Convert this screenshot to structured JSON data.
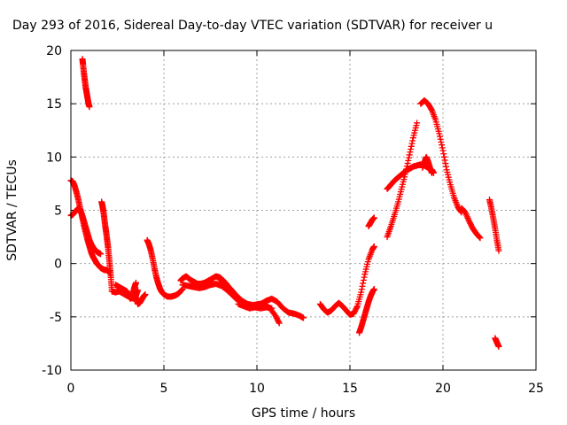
{
  "chart_data": {
    "type": "scatter",
    "title": "Day 293 of 2016, Sidereal Day-to-day VTEC variation (SDTVAR) for receiver u",
    "xlabel": "GPS time / hours",
    "ylabel": "SDTVAR / TECUs",
    "xlim": [
      0,
      25
    ],
    "ylim": [
      -10,
      20
    ],
    "xticks": [
      0,
      5,
      10,
      15,
      20,
      25
    ],
    "yticks": [
      -10,
      -5,
      0,
      5,
      10,
      15,
      20
    ],
    "grid": true,
    "marker": "+",
    "color": "#ff0000",
    "series": [
      {
        "x": [
          0.62,
          0.65,
          0.7,
          0.75,
          0.8,
          0.85,
          0.9,
          0.95,
          1.0
        ],
        "y": [
          19.2,
          18.7,
          17.9,
          17.2,
          16.5,
          16.0,
          15.5,
          15.0,
          14.7
        ]
      },
      {
        "x": [
          0.0,
          0.1,
          0.2,
          0.3,
          0.4,
          0.5,
          0.6,
          0.7,
          0.8,
          0.9,
          1.0,
          1.1,
          1.2,
          1.3,
          1.4,
          1.5,
          1.6,
          1.7,
          1.8,
          1.9,
          2.0,
          2.1
        ],
        "y": [
          7.8,
          7.7,
          7.3,
          6.7,
          6.0,
          5.2,
          4.4,
          3.6,
          2.9,
          2.2,
          1.6,
          1.0,
          0.6,
          0.3,
          0.0,
          -0.2,
          -0.4,
          -0.5,
          -0.6,
          -0.6,
          -0.7,
          -0.8
        ]
      },
      {
        "x": [
          0.0,
          0.1,
          0.2,
          0.3,
          0.4,
          0.5,
          0.6,
          0.7,
          0.8,
          0.9,
          1.0,
          1.1,
          1.2,
          1.3,
          1.4,
          1.5,
          1.6
        ],
        "y": [
          4.5,
          4.6,
          4.8,
          5.0,
          5.2,
          5.0,
          4.6,
          4.0,
          3.4,
          2.8,
          2.2,
          1.8,
          1.5,
          1.3,
          1.1,
          1.0,
          0.9
        ]
      },
      {
        "x": [
          1.65,
          1.7,
          1.75,
          1.8,
          1.85,
          1.9,
          1.95,
          2.0,
          2.05,
          2.1,
          2.15,
          2.2
        ],
        "y": [
          5.8,
          5.4,
          4.9,
          4.2,
          3.5,
          2.9,
          2.2,
          1.5,
          0.6,
          -0.3,
          -1.3,
          -2.4
        ]
      },
      {
        "x": [
          2.2,
          2.4,
          2.6,
          2.8,
          3.0,
          3.2,
          3.4,
          3.5,
          3.6
        ],
        "y": [
          -2.6,
          -2.7,
          -2.6,
          -2.8,
          -3.0,
          -3.2,
          -3.3,
          -3.0,
          -2.5
        ]
      },
      {
        "x": [
          2.4,
          2.6,
          2.8,
          3.0,
          3.1,
          3.2,
          3.3,
          3.4,
          3.5
        ],
        "y": [
          -2.0,
          -2.2,
          -2.4,
          -2.6,
          -2.9,
          -3.3,
          -3.0,
          -2.3,
          -1.8
        ]
      },
      {
        "x": [
          3.4,
          3.5,
          3.6,
          3.7,
          3.8,
          3.9,
          4.0
        ],
        "y": [
          -2.5,
          -3.2,
          -3.8,
          -3.7,
          -3.4,
          -3.1,
          -2.9
        ]
      },
      {
        "x": [
          4.1,
          4.2,
          4.3,
          4.4,
          4.5,
          4.6,
          4.7,
          4.8,
          4.9,
          5.0,
          5.2,
          5.4,
          5.6,
          5.8,
          6.0
        ],
        "y": [
          2.2,
          1.8,
          1.2,
          0.4,
          -0.5,
          -1.3,
          -1.9,
          -2.4,
          -2.7,
          -2.9,
          -3.1,
          -3.1,
          -3.0,
          -2.8,
          -2.4
        ]
      },
      {
        "x": [
          5.9,
          6.0,
          6.2,
          6.4,
          6.6,
          6.8,
          7.0,
          7.2,
          7.4,
          7.6,
          7.8,
          8.0,
          8.2,
          8.4,
          8.6,
          8.8
        ],
        "y": [
          -1.6,
          -1.4,
          -1.2,
          -1.5,
          -1.7,
          -1.9,
          -1.9,
          -1.8,
          -1.6,
          -1.4,
          -1.2,
          -1.3,
          -1.6,
          -2.0,
          -2.5,
          -3.0
        ]
      },
      {
        "x": [
          6.0,
          6.3,
          6.6,
          6.9,
          7.2,
          7.5,
          7.8,
          8.1,
          8.4,
          8.7,
          9.0,
          9.3,
          9.6,
          9.9,
          10.2,
          10.5,
          10.8
        ],
        "y": [
          -2.0,
          -2.1,
          -2.2,
          -2.3,
          -2.2,
          -2.0,
          -1.9,
          -2.1,
          -2.5,
          -3.0,
          -3.5,
          -3.8,
          -4.0,
          -4.1,
          -4.2,
          -4.1,
          -4.2
        ]
      },
      {
        "x": [
          8.0,
          8.3,
          8.6,
          8.9,
          9.2,
          9.5,
          9.8,
          10.1,
          10.4,
          10.7,
          11.0,
          11.2
        ],
        "y": [
          -1.5,
          -1.9,
          -2.4,
          -3.0,
          -3.5,
          -3.8,
          -3.9,
          -3.8,
          -3.8,
          -4.2,
          -4.9,
          -5.6
        ]
      },
      {
        "x": [
          9.0,
          9.3,
          9.6,
          9.9,
          10.2,
          10.5,
          10.8,
          11.1,
          11.4,
          11.7,
          12.0,
          12.3,
          12.5
        ],
        "y": [
          -3.8,
          -4.0,
          -4.2,
          -4.1,
          -3.8,
          -3.5,
          -3.3,
          -3.6,
          -4.2,
          -4.6,
          -4.7,
          -4.9,
          -5.1
        ]
      },
      {
        "x": [
          13.4,
          13.6,
          13.8,
          14.0,
          14.2,
          14.4,
          14.6,
          14.8,
          15.0,
          15.2,
          15.4,
          15.6,
          15.8,
          16.0,
          16.2,
          16.3
        ],
        "y": [
          -3.8,
          -4.3,
          -4.6,
          -4.4,
          -4.0,
          -3.7,
          -4.0,
          -4.4,
          -4.8,
          -4.7,
          -4.0,
          -2.7,
          -1.0,
          0.4,
          1.3,
          1.6
        ]
      },
      {
        "x": [
          15.5,
          15.6,
          15.7,
          15.8,
          15.9,
          16.0,
          16.1,
          16.2,
          16.3
        ],
        "y": [
          -6.5,
          -6.0,
          -5.4,
          -4.8,
          -4.2,
          -3.6,
          -3.1,
          -2.7,
          -2.4
        ]
      },
      {
        "x": [
          16.0,
          16.1,
          16.2,
          16.3
        ],
        "y": [
          3.5,
          3.8,
          4.1,
          4.3
        ]
      },
      {
        "x": [
          17.0,
          17.2,
          17.4,
          17.6,
          17.8,
          18.0,
          18.2,
          18.4,
          18.6,
          18.8,
          19.0,
          19.2,
          19.4,
          19.5
        ],
        "y": [
          7.0,
          7.4,
          7.8,
          8.1,
          8.4,
          8.7,
          8.9,
          9.1,
          9.2,
          9.3,
          9.2,
          9.0,
          8.8,
          8.5
        ]
      },
      {
        "x": [
          17.0,
          17.2,
          17.4,
          17.6,
          17.8,
          18.0,
          18.2,
          18.4,
          18.6
        ],
        "y": [
          2.5,
          3.5,
          4.6,
          5.8,
          7.2,
          8.6,
          10.2,
          11.8,
          13.2
        ]
      },
      {
        "x": [
          18.8,
          19.0,
          19.2,
          19.4,
          19.6,
          19.8,
          20.0,
          20.2,
          20.4,
          20.6,
          20.8,
          21.0
        ],
        "y": [
          15.0,
          15.3,
          15.0,
          14.4,
          13.5,
          12.2,
          10.6,
          8.8,
          7.4,
          6.2,
          5.3,
          4.8
        ]
      },
      {
        "x": [
          18.9,
          19.0,
          19.1,
          19.2,
          19.3,
          19.4
        ],
        "y": [
          9.0,
          9.5,
          10.0,
          9.6,
          9.0,
          8.5
        ]
      },
      {
        "x": [
          21.0,
          21.2,
          21.4,
          21.6,
          21.8,
          22.0
        ],
        "y": [
          5.2,
          4.8,
          4.0,
          3.3,
          2.8,
          2.4
        ]
      },
      {
        "x": [
          22.5,
          22.6,
          22.7,
          22.8,
          22.9,
          23.0
        ],
        "y": [
          6.0,
          5.2,
          4.3,
          3.3,
          2.2,
          1.2
        ]
      },
      {
        "x": [
          22.8,
          22.9,
          23.0
        ],
        "y": [
          -7.0,
          -7.4,
          -7.8
        ]
      }
    ]
  }
}
